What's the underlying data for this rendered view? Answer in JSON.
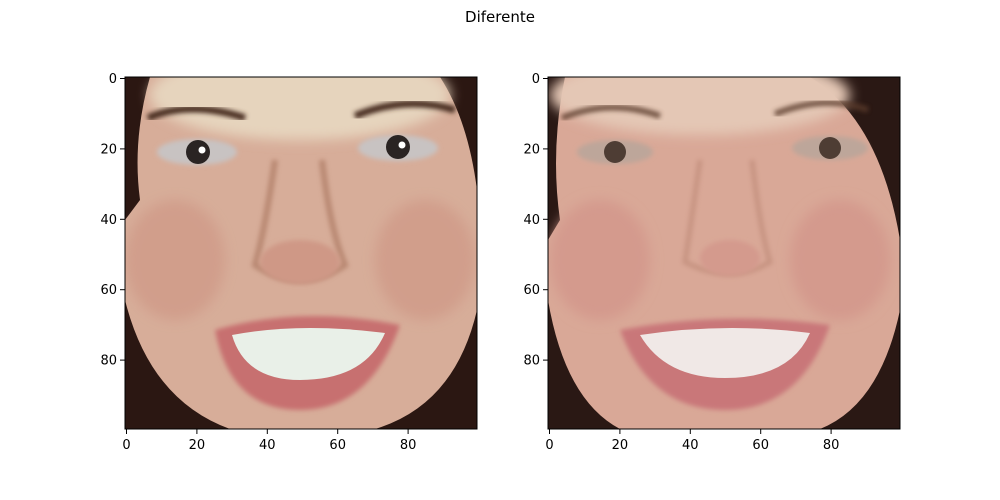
{
  "figure": {
    "suptitle": "Diferente"
  },
  "panels": [
    {
      "name": "left-face-image",
      "x_ticks": [
        "0",
        "20",
        "40",
        "60",
        "80"
      ],
      "y_ticks": [
        "0",
        "20",
        "40",
        "60",
        "80"
      ],
      "palette": {
        "skin_base": "#d7ad99",
        "skin_warm": "#cf9886",
        "skin_shadow": "#a46f58",
        "forehead_highlight": "#e6d4bd",
        "hair": "#2b1712",
        "brow": "#4a2e24",
        "eye_white": "#c8c3c2",
        "iris": "#2a2423",
        "lip": "#c76f70",
        "teeth": "#e9f0e8"
      }
    },
    {
      "name": "right-face-image",
      "x_ticks": [
        "0",
        "20",
        "40",
        "60",
        "80"
      ],
      "y_ticks": [
        "0",
        "20",
        "40",
        "60",
        "80"
      ],
      "palette": {
        "skin_base": "#d9a897",
        "skin_warm": "#d49a8d",
        "skin_shadow": "#b07a67",
        "forehead_highlight": "#e4c7b5",
        "hair": "#2a1814",
        "brow": "#5a3a2c",
        "eye_white": "#bda69a",
        "iris": "#3b2a22",
        "lip": "#c97779",
        "teeth": "#f0e8e6"
      }
    }
  ]
}
